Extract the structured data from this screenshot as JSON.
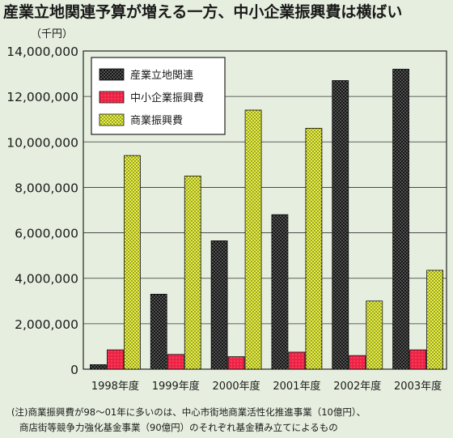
{
  "title": "産業立地関連予算が増える一方、中小企業振興費は横ばい",
  "unit": "（千円）",
  "note": {
    "line1": "(注)商業振興費が98〜01年に多いのは、中心市街地商業活性化推進事業（10億円）、",
    "line2": "商店街等競争力強化基金事業（90億円）のそれぞれ基金積み立てによるもの"
  },
  "chart_data": {
    "type": "bar",
    "categories": [
      "1998年度",
      "1999年度",
      "2000年度",
      "2001年度",
      "2002年度",
      "2003年度"
    ],
    "series": [
      {
        "name": "産業立地関連",
        "color": "#151515",
        "values": [
          200000,
          3300000,
          5650000,
          6800000,
          12700000,
          13200000
        ]
      },
      {
        "name": "中小企業振興費",
        "color": "#ee2244",
        "values": [
          850000,
          650000,
          550000,
          750000,
          600000,
          850000
        ]
      },
      {
        "name": "商業振興費",
        "color": "#e8f23a",
        "values": [
          9400000,
          8500000,
          11400000,
          10600000,
          3000000,
          4350000
        ]
      }
    ],
    "yticks": [
      "0",
      "2,000,000",
      "4,000,000",
      "6,000,000",
      "8,000,000",
      "10,000,000",
      "12,000,000",
      "14,000,000"
    ],
    "ylim": [
      0,
      14000000
    ],
    "grid": true,
    "legend_position": "top-left"
  }
}
